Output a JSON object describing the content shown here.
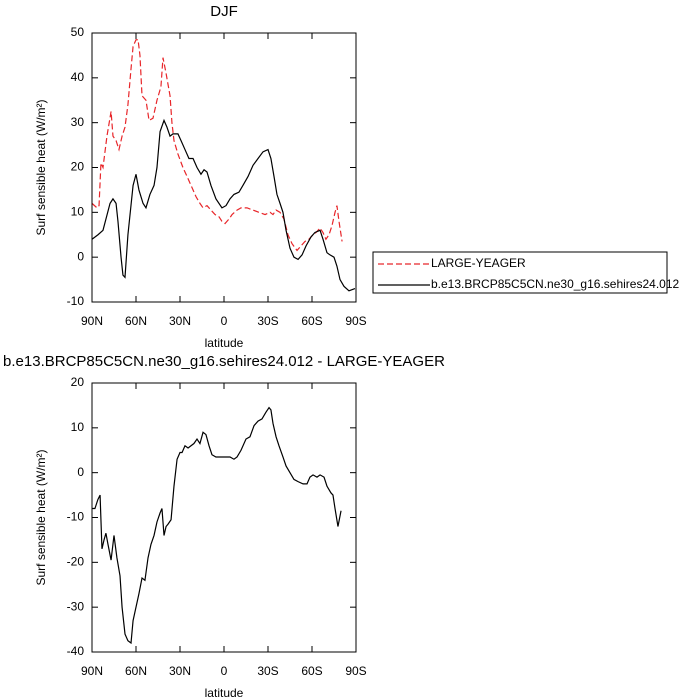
{
  "chart_data": [
    {
      "type": "line",
      "title": "DJF",
      "xlabel": "latitude",
      "ylabel": "Surf sensible heat (W/m²)",
      "xlim": [
        90,
        -90
      ],
      "ylim": [
        -10,
        50
      ],
      "xticks": [
        {
          "value": 90,
          "label": "90N"
        },
        {
          "value": 60,
          "label": "60N"
        },
        {
          "value": 30,
          "label": "30N"
        },
        0,
        {
          "value": -30,
          "label": "30S"
        },
        {
          "value": -60,
          "label": "60S"
        },
        {
          "value": -90,
          "label": "90S"
        }
      ],
      "yticks": [
        -10,
        0,
        10,
        20,
        30,
        40,
        50
      ],
      "legend": "outside-right",
      "series": [
        {
          "name": "LARGE-YEAGER",
          "color": "#e8262a",
          "dash": true,
          "x": [
            90,
            86.6,
            85.2,
            83.9,
            82.5,
            79.8,
            77,
            75.7,
            73.6,
            71.6,
            69.5,
            67.5,
            65.5,
            63.4,
            62,
            60,
            58.6,
            57.3,
            55.9,
            53.2,
            51.1,
            48.4,
            45.7,
            43,
            41.6,
            39.5,
            36.8,
            35.5,
            34.1,
            31.4,
            28,
            25.2,
            21.8,
            19.1,
            16.4,
            14.3,
            11.6,
            8.9,
            6.1,
            3.4,
            1.4,
            -0.7,
            -3.4,
            -5.5,
            -8.9,
            -11.6,
            -15.7,
            -19.8,
            -23.9,
            -28,
            -31.4,
            -33.4,
            -35.5,
            -38.2,
            -40.9,
            -43.6,
            -46.4,
            -49.8,
            -52.5,
            -55.2,
            -57.9,
            -60.7,
            -62.7,
            -65.5,
            -67.5,
            -69.5,
            -71.6,
            -73.6,
            -75.7,
            -77,
            -78.4,
            -80.5
          ],
          "values": [
            12,
            11,
            11.5,
            21,
            20,
            27,
            32.5,
            27,
            26,
            24,
            27,
            29,
            34,
            42,
            47,
            48.5,
            48.5,
            45,
            36,
            35,
            30.5,
            31,
            35,
            38,
            44.5,
            41,
            36,
            30,
            26,
            23,
            20,
            18,
            15.5,
            13.5,
            12,
            11,
            11.5,
            10.5,
            9.5,
            9,
            8,
            7.5,
            8.5,
            9.5,
            10.5,
            11,
            11,
            10.5,
            10,
            9.5,
            10,
            9.5,
            10.5,
            10,
            8.5,
            5,
            3,
            1.5,
            2.5,
            3.5,
            4,
            5,
            5.5,
            6.5,
            5.5,
            4,
            5,
            7,
            10,
            11.5,
            8,
            3.5
          ]
        },
        {
          "name": "b.e13.BRCP85C5CN.ne30_g16.sehires24.012",
          "color": "#000000",
          "dash": false,
          "x": [
            90,
            85.9,
            82.5,
            77.7,
            75.7,
            73.6,
            72.3,
            70.2,
            68.9,
            67.5,
            65.5,
            62,
            60,
            58,
            55.2,
            53.2,
            50.5,
            47.7,
            45.7,
            43.6,
            40.9,
            38.9,
            36.8,
            34.8,
            31.4,
            29.3,
            26.6,
            23.9,
            21.1,
            18.4,
            15.7,
            13.6,
            11.6,
            8.9,
            5.5,
            1.4,
            -1.4,
            -4.1,
            -6.8,
            -10.2,
            -12.9,
            -16.4,
            -19.8,
            -23.2,
            -26.6,
            -30,
            -32,
            -34.1,
            -36.1,
            -38.2,
            -40.2,
            -42.3,
            -45,
            -47.7,
            -50.5,
            -53.2,
            -55.9,
            -59.3,
            -62,
            -65.5,
            -67.5,
            -70.2,
            -72.3,
            -75,
            -77,
            -79.1,
            -81.8,
            -85.2,
            -89.3
          ],
          "values": [
            4,
            5,
            6,
            12,
            13,
            12,
            8,
            0,
            -4,
            -4.5,
            5,
            16,
            18.5,
            15,
            12,
            11,
            14,
            16,
            20,
            28,
            30.5,
            29,
            27,
            27.5,
            27.5,
            26,
            24,
            22,
            22,
            20,
            18.5,
            19.5,
            19,
            16,
            13,
            11,
            11.5,
            13,
            14,
            14.5,
            16,
            18,
            20.5,
            22,
            23.5,
            24,
            22,
            18,
            14,
            12,
            10,
            6,
            2,
            0,
            -0.5,
            0.5,
            2.5,
            4.5,
            5.5,
            6,
            4,
            1,
            0.5,
            0,
            -2,
            -5,
            -6.5,
            -7.5,
            -7
          ]
        }
      ]
    },
    {
      "type": "line",
      "title": "b.e13.BRCP85C5CN.ne30_g16.sehires24.012 - LARGE-YEAGER",
      "xlabel": "latitude",
      "ylabel": "Surf sensible heat (W/m²)",
      "xlim": [
        90,
        -90
      ],
      "ylim": [
        -40,
        20
      ],
      "xticks": [
        {
          "value": 90,
          "label": "90N"
        },
        {
          "value": 60,
          "label": "60N"
        },
        {
          "value": 30,
          "label": "30N"
        },
        0,
        {
          "value": -30,
          "label": "30S"
        },
        {
          "value": -60,
          "label": "60S"
        },
        {
          "value": -90,
          "label": "90S"
        }
      ],
      "yticks": [
        -40,
        -30,
        -20,
        -10,
        0,
        10,
        20
      ],
      "series": [
        {
          "color": "#000000",
          "dash": false,
          "x": [
            90,
            88,
            86,
            84.5,
            83.2,
            81.8,
            80.5,
            79.1,
            77,
            75,
            73,
            70.9,
            69.5,
            67.5,
            65.5,
            63.4,
            62,
            60,
            58,
            55.9,
            53.9,
            51.8,
            49.8,
            47.7,
            45.7,
            43.6,
            42.3,
            40.9,
            39.5,
            38.2,
            36.1,
            34.1,
            32,
            30,
            28.6,
            26.6,
            24.5,
            22.5,
            20.5,
            18.4,
            16.4,
            14.3,
            12.3,
            10.2,
            8.2,
            5.5,
            2.7,
            -0.7,
            -4.1,
            -6.8,
            -8.9,
            -11.6,
            -15,
            -17.7,
            -20.5,
            -23.2,
            -25.9,
            -28.6,
            -30.7,
            -32,
            -33.4,
            -35.5,
            -37.5,
            -40.2,
            -42.3,
            -45,
            -47.7,
            -50.5,
            -53.9,
            -56.6,
            -58.6,
            -60.7,
            -63.4,
            -65.5,
            -68.2,
            -70.2,
            -72.9,
            -74.3,
            -75.7,
            -77.7,
            -79.8
          ],
          "values": [
            -8,
            -8,
            -6,
            -5,
            -17,
            -15,
            -13.5,
            -16,
            -19.5,
            -14,
            -19,
            -23,
            -30,
            -36,
            -37.5,
            -38,
            -33,
            -30,
            -27,
            -23.5,
            -24,
            -19,
            -16,
            -14,
            -11,
            -9,
            -8,
            -14,
            -12,
            -11.5,
            -10.5,
            -3,
            3,
            4.5,
            4.5,
            6,
            5.5,
            6,
            6.5,
            7.5,
            6.5,
            9,
            8.5,
            6,
            4,
            3.5,
            3.5,
            3.5,
            3.5,
            3,
            3.5,
            5,
            7.5,
            8,
            10.5,
            11.5,
            12,
            13.5,
            14.5,
            14,
            11,
            8,
            6,
            3.5,
            1.5,
            0,
            -1.5,
            -2,
            -2.5,
            -2.5,
            -1,
            -0.5,
            -1,
            -0.5,
            -1,
            -3,
            -4.5,
            -5,
            -8,
            -12,
            -8.5
          ]
        }
      ]
    }
  ]
}
